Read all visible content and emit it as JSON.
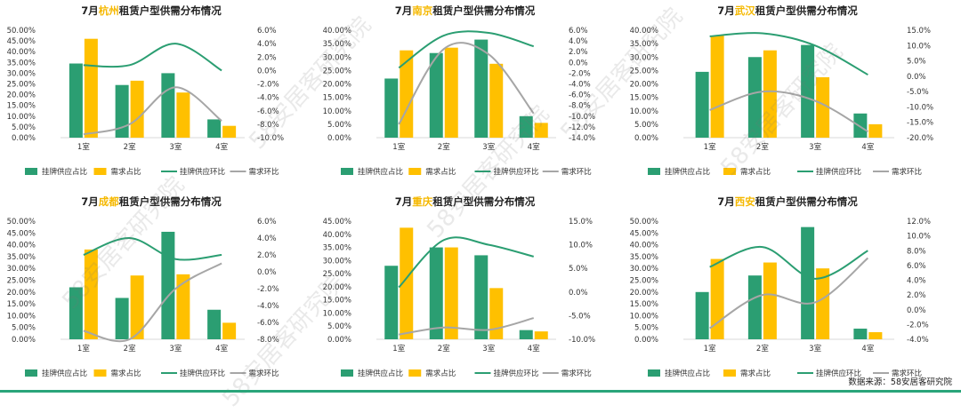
{
  "colors": {
    "supply": "#2b9e72",
    "demand": "#ffc000",
    "supply_mom": "#2b9e72",
    "demand_mom": "#a6a6a6"
  },
  "source_text": "数据来源：58安居客研究院",
  "watermark": "58安居客研究院",
  "chart_data": [
    {
      "type": "bar",
      "title_prefix": "7月",
      "city": "杭州",
      "title_suffix": "租赁户型供需分布情况",
      "categories": [
        "1室",
        "2室",
        "3室",
        "4室"
      ],
      "series": [
        {
          "name": "挂牌供应占比",
          "values": [
            34.5,
            24.5,
            30.0,
            8.5
          ],
          "axis": "left",
          "kind": "bar"
        },
        {
          "name": "需求占比",
          "values": [
            46.0,
            26.5,
            21.0,
            5.5
          ],
          "axis": "left",
          "kind": "bar"
        },
        {
          "name": "挂牌供应环比",
          "values": [
            0.8,
            0.8,
            4.0,
            0.0
          ],
          "axis": "right",
          "kind": "line"
        },
        {
          "name": "需求环比",
          "values": [
            -9.5,
            -8.0,
            -2.5,
            -7.5
          ],
          "axis": "right",
          "kind": "line"
        }
      ],
      "left_ylim": [
        0,
        50
      ],
      "left_ticks": [
        "0.00%",
        "5.00%",
        "10.00%",
        "15.00%",
        "20.00%",
        "25.00%",
        "30.00%",
        "35.00%",
        "40.00%",
        "45.00%",
        "50.00%"
      ],
      "right_ylim": [
        -10,
        6
      ],
      "right_ticks": [
        "-10.0%",
        "-8.0%",
        "-6.0%",
        "-4.0%",
        "-2.0%",
        "0.0%",
        "2.0%",
        "4.0%",
        "6.0%"
      ]
    },
    {
      "type": "bar",
      "title_prefix": "7月",
      "city": "南京",
      "title_suffix": "租赁户型供需分布情况",
      "categories": [
        "1室",
        "2室",
        "3室",
        "4室"
      ],
      "series": [
        {
          "name": "挂牌供应占比",
          "values": [
            22.0,
            31.5,
            36.5,
            8.0
          ],
          "axis": "left",
          "kind": "bar"
        },
        {
          "name": "需求占比",
          "values": [
            32.5,
            33.5,
            27.5,
            5.5
          ],
          "axis": "left",
          "kind": "bar"
        },
        {
          "name": "挂牌供应环比",
          "values": [
            -1.0,
            5.0,
            5.5,
            3.0
          ],
          "axis": "right",
          "kind": "line"
        },
        {
          "name": "需求环比",
          "values": [
            -11.5,
            2.5,
            1.5,
            -9.5
          ],
          "axis": "right",
          "kind": "line"
        }
      ],
      "left_ylim": [
        0,
        40
      ],
      "left_ticks": [
        "0.00%",
        "5.00%",
        "10.00%",
        "15.00%",
        "20.00%",
        "25.00%",
        "30.00%",
        "35.00%",
        "40.00%"
      ],
      "right_ylim": [
        -14,
        6
      ],
      "right_ticks": [
        "-14.0%",
        "-12.0%",
        "-10.0%",
        "-8.0%",
        "-6.0%",
        "-4.0%",
        "-2.0%",
        "0.0%",
        "2.0%",
        "4.0%",
        "6.0%"
      ]
    },
    {
      "type": "bar",
      "title_prefix": "7月",
      "city": "武汉",
      "title_suffix": "租赁户型供需分布情况",
      "categories": [
        "1室",
        "2室",
        "3室",
        "4室"
      ],
      "series": [
        {
          "name": "挂牌供应占比",
          "values": [
            24.5,
            30.0,
            34.5,
            9.0
          ],
          "axis": "left",
          "kind": "bar"
        },
        {
          "name": "需求占比",
          "values": [
            38.0,
            32.5,
            22.5,
            5.0
          ],
          "axis": "left",
          "kind": "bar"
        },
        {
          "name": "挂牌供应环比",
          "values": [
            13.0,
            14.0,
            10.0,
            0.5
          ],
          "axis": "right",
          "kind": "line"
        },
        {
          "name": "需求环比",
          "values": [
            -11.0,
            -5.0,
            -8.0,
            -18.0
          ],
          "axis": "right",
          "kind": "line"
        }
      ],
      "left_ylim": [
        0,
        40
      ],
      "left_ticks": [
        "0.00%",
        "5.00%",
        "10.00%",
        "15.00%",
        "20.00%",
        "25.00%",
        "30.00%",
        "35.00%",
        "40.00%"
      ],
      "right_ylim": [
        -20,
        15
      ],
      "right_ticks": [
        "-20.0%",
        "-15.0%",
        "-10.0%",
        "-5.0%",
        "0.0%",
        "5.0%",
        "10.0%",
        "15.0%"
      ]
    },
    {
      "type": "bar",
      "title_prefix": "7月",
      "city": "成都",
      "title_suffix": "租赁户型供需分布情况",
      "categories": [
        "1室",
        "2室",
        "3室",
        "4室"
      ],
      "series": [
        {
          "name": "挂牌供应占比",
          "values": [
            22.0,
            17.5,
            45.5,
            12.5
          ],
          "axis": "left",
          "kind": "bar"
        },
        {
          "name": "需求占比",
          "values": [
            38.0,
            27.0,
            27.5,
            7.0
          ],
          "axis": "left",
          "kind": "bar"
        },
        {
          "name": "挂牌供应环比",
          "values": [
            2.0,
            4.0,
            1.5,
            2.0
          ],
          "axis": "right",
          "kind": "line"
        },
        {
          "name": "需求环比",
          "values": [
            -7.0,
            -8.0,
            -2.0,
            1.0
          ],
          "axis": "right",
          "kind": "line"
        }
      ],
      "left_ylim": [
        0,
        50
      ],
      "left_ticks": [
        "0.00%",
        "5.00%",
        "10.00%",
        "15.00%",
        "20.00%",
        "25.00%",
        "30.00%",
        "35.00%",
        "40.00%",
        "45.00%",
        "50.00%"
      ],
      "right_ylim": [
        -8,
        6
      ],
      "right_ticks": [
        "-8.0%",
        "-6.0%",
        "-4.0%",
        "-2.0%",
        "0.0%",
        "2.0%",
        "4.0%",
        "6.0%"
      ]
    },
    {
      "type": "bar",
      "title_prefix": "7月",
      "city": "重庆",
      "title_suffix": "租赁户型供需分布情况",
      "categories": [
        "1室",
        "2室",
        "3室",
        "4室"
      ],
      "series": [
        {
          "name": "挂牌供应占比",
          "values": [
            28.0,
            35.0,
            32.0,
            3.5
          ],
          "axis": "left",
          "kind": "bar"
        },
        {
          "name": "需求占比",
          "values": [
            42.5,
            35.0,
            19.5,
            3.0
          ],
          "axis": "left",
          "kind": "bar"
        },
        {
          "name": "挂牌供应环比",
          "values": [
            1.0,
            11.0,
            10.0,
            7.5
          ],
          "axis": "right",
          "kind": "line"
        },
        {
          "name": "需求环比",
          "values": [
            -9.0,
            -7.5,
            -8.0,
            -5.5
          ],
          "axis": "right",
          "kind": "line"
        }
      ],
      "left_ylim": [
        0,
        45
      ],
      "left_ticks": [
        "0.00%",
        "5.00%",
        "10.00%",
        "15.00%",
        "20.00%",
        "25.00%",
        "30.00%",
        "35.00%",
        "40.00%",
        "45.00%"
      ],
      "right_ylim": [
        -10,
        15
      ],
      "right_ticks": [
        "-10.0%",
        "-5.0%",
        "0.0%",
        "5.0%",
        "10.0%",
        "15.0%"
      ]
    },
    {
      "type": "bar",
      "title_prefix": "7月",
      "city": "西安",
      "title_suffix": "租赁户型供需分布情况",
      "categories": [
        "1室",
        "2室",
        "3室",
        "4室"
      ],
      "series": [
        {
          "name": "挂牌供应占比",
          "values": [
            20.0,
            27.0,
            47.5,
            4.5
          ],
          "axis": "left",
          "kind": "bar"
        },
        {
          "name": "需求占比",
          "values": [
            34.0,
            32.5,
            30.0,
            3.0
          ],
          "axis": "left",
          "kind": "bar"
        },
        {
          "name": "挂牌供应环比",
          "values": [
            5.8,
            8.5,
            4.2,
            8.0
          ],
          "axis": "right",
          "kind": "line"
        },
        {
          "name": "需求环比",
          "values": [
            -2.5,
            2.0,
            1.0,
            7.0
          ],
          "axis": "right",
          "kind": "line"
        }
      ],
      "left_ylim": [
        0,
        50
      ],
      "left_ticks": [
        "0.00%",
        "5.00%",
        "10.00%",
        "15.00%",
        "20.00%",
        "25.00%",
        "30.00%",
        "35.00%",
        "40.00%",
        "45.00%",
        "50.00%"
      ],
      "right_ylim": [
        -4,
        12
      ],
      "right_ticks": [
        "-4.0%",
        "-2.0%",
        "0.0%",
        "2.0%",
        "4.0%",
        "6.0%",
        "8.0%",
        "10.0%",
        "12.0%"
      ]
    }
  ]
}
